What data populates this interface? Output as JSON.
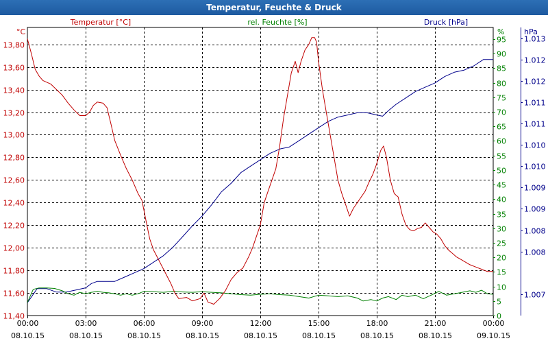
{
  "window": {
    "title": "Temperatur, Feuchte & Druck"
  },
  "chart_data": {
    "type": "line",
    "title": "Temperatur, Feuchte & Druck",
    "colors": {
      "temperature": "#c00000",
      "humidity": "#008000",
      "pressure": "#00008b",
      "grid": "#000000",
      "axis_text": "#000000"
    },
    "axes": {
      "temperature": {
        "unit": "°C",
        "label": "Temperatur [°C]",
        "ylim": [
          11.4,
          13.95
        ],
        "ticks": [
          "13,80",
          "13,60",
          "13,40",
          "13,20",
          "13,00",
          "12,80",
          "12,60",
          "12,40",
          "12,20",
          "12,00",
          "11,80",
          "11,60",
          "11,40"
        ]
      },
      "humidity": {
        "unit": "%",
        "label": "rel. Feuchte [%]",
        "ylim": [
          0,
          99
        ],
        "ticks": [
          "95",
          "90",
          "85",
          "80",
          "75",
          "70",
          "65",
          "60",
          "55",
          "50",
          "45",
          "40",
          "35",
          "30",
          "25",
          "20",
          "15",
          "10",
          "5",
          "0"
        ]
      },
      "pressure": {
        "unit": "hPa",
        "label": "Druck [hPa]",
        "ylim": [
          1006.75,
          1013.5
        ],
        "ticks": [
          "1.013",
          "1.012",
          "1.012",
          "1.011",
          "1.011",
          "1.010",
          "1.010",
          "1.009",
          "1.009",
          "1.008",
          "1.008",
          "1.007"
        ]
      }
    },
    "x_ticks": [
      {
        "time": "00:00",
        "date": "08.10.15"
      },
      {
        "time": "03:00",
        "date": "08.10.15"
      },
      {
        "time": "06:00",
        "date": "08.10.15"
      },
      {
        "time": "09:00",
        "date": "08.10.15"
      },
      {
        "time": "12:00",
        "date": "08.10.15"
      },
      {
        "time": "15:00",
        "date": "08.10.15"
      },
      {
        "time": "18:00",
        "date": "08.10.15"
      },
      {
        "time": "21:00",
        "date": "08.10.15"
      },
      {
        "time": "00:00",
        "date": "09.10.15"
      }
    ],
    "x_unit": "hours since 08.10.15 00:00",
    "xlim": [
      0,
      24
    ],
    "series": [
      {
        "name": "Temperatur",
        "axis": "temperature",
        "points": [
          [
            0,
            13.85
          ],
          [
            0.2,
            13.72
          ],
          [
            0.4,
            13.58
          ],
          [
            0.6,
            13.52
          ],
          [
            0.8,
            13.48
          ],
          [
            1.2,
            13.45
          ],
          [
            1.5,
            13.4
          ],
          [
            1.8,
            13.35
          ],
          [
            2.1,
            13.28
          ],
          [
            2.4,
            13.22
          ],
          [
            2.7,
            13.17
          ],
          [
            3.0,
            13.17
          ],
          [
            3.2,
            13.2
          ],
          [
            3.4,
            13.26
          ],
          [
            3.6,
            13.29
          ],
          [
            3.9,
            13.28
          ],
          [
            4.1,
            13.24
          ],
          [
            4.3,
            13.1
          ],
          [
            4.5,
            12.95
          ],
          [
            4.8,
            12.82
          ],
          [
            5.1,
            12.7
          ],
          [
            5.4,
            12.6
          ],
          [
            5.7,
            12.48
          ],
          [
            5.9,
            12.42
          ],
          [
            6.1,
            12.25
          ],
          [
            6.3,
            12.08
          ],
          [
            6.5,
            11.98
          ],
          [
            6.8,
            11.88
          ],
          [
            7.1,
            11.78
          ],
          [
            7.4,
            11.68
          ],
          [
            7.6,
            11.6
          ],
          [
            7.8,
            11.55
          ],
          [
            8.2,
            11.56
          ],
          [
            8.5,
            11.53
          ],
          [
            8.9,
            11.55
          ],
          [
            9.1,
            11.6
          ],
          [
            9.3,
            11.52
          ],
          [
            9.6,
            11.5
          ],
          [
            9.9,
            11.55
          ],
          [
            10.2,
            11.62
          ],
          [
            10.5,
            11.72
          ],
          [
            10.8,
            11.78
          ],
          [
            11.1,
            11.82
          ],
          [
            11.4,
            11.92
          ],
          [
            11.6,
            12.0
          ],
          [
            11.8,
            12.1
          ],
          [
            12.0,
            12.2
          ],
          [
            12.2,
            12.4
          ],
          [
            12.4,
            12.5
          ],
          [
            12.6,
            12.6
          ],
          [
            12.8,
            12.7
          ],
          [
            13.0,
            12.9
          ],
          [
            13.2,
            13.15
          ],
          [
            13.4,
            13.35
          ],
          [
            13.6,
            13.55
          ],
          [
            13.8,
            13.65
          ],
          [
            13.95,
            13.55
          ],
          [
            14.1,
            13.65
          ],
          [
            14.3,
            13.75
          ],
          [
            14.5,
            13.8
          ],
          [
            14.65,
            13.86
          ],
          [
            14.8,
            13.86
          ],
          [
            14.9,
            13.82
          ],
          [
            15.0,
            13.65
          ],
          [
            15.2,
            13.4
          ],
          [
            15.4,
            13.2
          ],
          [
            15.6,
            13.0
          ],
          [
            15.8,
            12.8
          ],
          [
            16.0,
            12.6
          ],
          [
            16.2,
            12.48
          ],
          [
            16.4,
            12.38
          ],
          [
            16.6,
            12.28
          ],
          [
            16.8,
            12.35
          ],
          [
            17.0,
            12.4
          ],
          [
            17.2,
            12.45
          ],
          [
            17.4,
            12.5
          ],
          [
            17.6,
            12.58
          ],
          [
            17.8,
            12.65
          ],
          [
            17.95,
            12.72
          ],
          [
            18.1,
            12.8
          ],
          [
            18.2,
            12.86
          ],
          [
            18.35,
            12.9
          ],
          [
            18.5,
            12.8
          ],
          [
            18.7,
            12.6
          ],
          [
            18.9,
            12.48
          ],
          [
            19.1,
            12.45
          ],
          [
            19.3,
            12.3
          ],
          [
            19.5,
            12.2
          ],
          [
            19.7,
            12.16
          ],
          [
            19.9,
            12.15
          ],
          [
            20.1,
            12.17
          ],
          [
            20.3,
            12.18
          ],
          [
            20.5,
            12.22
          ],
          [
            20.7,
            12.18
          ],
          [
            20.9,
            12.14
          ],
          [
            21.1,
            12.12
          ],
          [
            21.3,
            12.08
          ],
          [
            21.5,
            12.02
          ],
          [
            21.7,
            11.98
          ],
          [
            21.9,
            11.95
          ],
          [
            22.1,
            11.92
          ],
          [
            22.3,
            11.9
          ],
          [
            22.5,
            11.88
          ],
          [
            22.8,
            11.85
          ],
          [
            23.1,
            11.83
          ],
          [
            23.4,
            11.81
          ],
          [
            23.7,
            11.79
          ],
          [
            24.0,
            11.79
          ]
        ]
      },
      {
        "name": "rel. Feuchte",
        "axis": "humidity",
        "points": [
          [
            0,
            4.5
          ],
          [
            0.3,
            9
          ],
          [
            0.6,
            9.5
          ],
          [
            1.0,
            9.5
          ],
          [
            1.4,
            9.3
          ],
          [
            1.8,
            8.5
          ],
          [
            2.1,
            7.5
          ],
          [
            2.4,
            7
          ],
          [
            2.7,
            8
          ],
          [
            3.0,
            7.5
          ],
          [
            3.3,
            8
          ],
          [
            3.6,
            8.3
          ],
          [
            3.9,
            8
          ],
          [
            4.2,
            7.8
          ],
          [
            4.5,
            7.5
          ],
          [
            4.8,
            7
          ],
          [
            5.1,
            7.5
          ],
          [
            5.4,
            7
          ],
          [
            5.7,
            7.5
          ],
          [
            6.0,
            8.3
          ],
          [
            6.5,
            8.2
          ],
          [
            7.0,
            8
          ],
          [
            7.5,
            8.3
          ],
          [
            8.0,
            8.1
          ],
          [
            8.5,
            8
          ],
          [
            9.0,
            8.2
          ],
          [
            9.5,
            8
          ],
          [
            10.0,
            7.8
          ],
          [
            10.5,
            7.5
          ],
          [
            11.0,
            7.2
          ],
          [
            11.5,
            7
          ],
          [
            12.0,
            7.3
          ],
          [
            12.5,
            7.5
          ],
          [
            13.0,
            7.2
          ],
          [
            13.5,
            7
          ],
          [
            14.0,
            6.5
          ],
          [
            14.5,
            6
          ],
          [
            15.0,
            7
          ],
          [
            15.5,
            6.8
          ],
          [
            16.0,
            6.5
          ],
          [
            16.5,
            6.8
          ],
          [
            17.0,
            6
          ],
          [
            17.3,
            5
          ],
          [
            17.7,
            5.5
          ],
          [
            18.0,
            5
          ],
          [
            18.3,
            6
          ],
          [
            18.6,
            6.5
          ],
          [
            19.0,
            5.5
          ],
          [
            19.3,
            7
          ],
          [
            19.6,
            6.5
          ],
          [
            20.0,
            7
          ],
          [
            20.4,
            5.8
          ],
          [
            20.8,
            7
          ],
          [
            21.2,
            8.3
          ],
          [
            21.6,
            7
          ],
          [
            22.0,
            7.5
          ],
          [
            22.4,
            8
          ],
          [
            22.8,
            8.5
          ],
          [
            23.1,
            8
          ],
          [
            23.4,
            8.7
          ],
          [
            23.7,
            7.5
          ],
          [
            24.0,
            7.3
          ]
        ]
      },
      {
        "name": "Druck",
        "axis": "pressure",
        "points": [
          [
            0,
            1007.05
          ],
          [
            0.5,
            1007.38
          ],
          [
            1.0,
            1007.38
          ],
          [
            1.5,
            1007.3
          ],
          [
            2.0,
            1007.3
          ],
          [
            2.5,
            1007.35
          ],
          [
            3.0,
            1007.4
          ],
          [
            3.3,
            1007.5
          ],
          [
            3.6,
            1007.55
          ],
          [
            4.0,
            1007.55
          ],
          [
            4.5,
            1007.55
          ],
          [
            5.0,
            1007.65
          ],
          [
            5.5,
            1007.75
          ],
          [
            6.0,
            1007.85
          ],
          [
            6.5,
            1008.0
          ],
          [
            7.0,
            1008.15
          ],
          [
            7.5,
            1008.35
          ],
          [
            8.0,
            1008.6
          ],
          [
            8.5,
            1008.85
          ],
          [
            9.0,
            1009.08
          ],
          [
            9.5,
            1009.35
          ],
          [
            10.0,
            1009.65
          ],
          [
            10.5,
            1009.85
          ],
          [
            11.0,
            1010.1
          ],
          [
            11.5,
            1010.25
          ],
          [
            12.0,
            1010.4
          ],
          [
            12.5,
            1010.55
          ],
          [
            13.0,
            1010.65
          ],
          [
            13.5,
            1010.7
          ],
          [
            14.0,
            1010.85
          ],
          [
            14.5,
            1011.0
          ],
          [
            15.0,
            1011.15
          ],
          [
            15.5,
            1011.3
          ],
          [
            16.0,
            1011.4
          ],
          [
            16.5,
            1011.45
          ],
          [
            17.0,
            1011.5
          ],
          [
            17.5,
            1011.5
          ],
          [
            18.0,
            1011.45
          ],
          [
            18.3,
            1011.42
          ],
          [
            18.6,
            1011.55
          ],
          [
            19.0,
            1011.7
          ],
          [
            19.5,
            1011.85
          ],
          [
            20.0,
            1012.0
          ],
          [
            20.5,
            1012.1
          ],
          [
            21.0,
            1012.2
          ],
          [
            21.5,
            1012.35
          ],
          [
            22.0,
            1012.45
          ],
          [
            22.5,
            1012.5
          ],
          [
            23.0,
            1012.6
          ],
          [
            23.5,
            1012.75
          ],
          [
            24.0,
            1012.75
          ]
        ]
      }
    ]
  }
}
